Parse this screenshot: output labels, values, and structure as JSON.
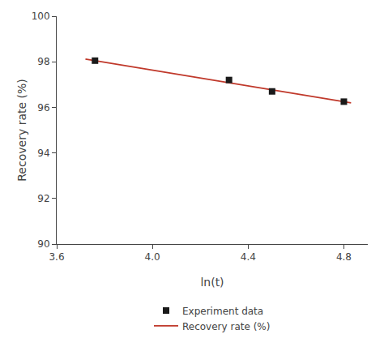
{
  "chart_data": {
    "type": "scatter",
    "series": [
      {
        "name": "Experiment data",
        "type": "scatter",
        "marker": "square",
        "color": "#1a1a1a",
        "x": [
          3.76,
          4.32,
          4.5,
          4.8
        ],
        "values": [
          98.05,
          97.2,
          96.7,
          96.25
        ]
      },
      {
        "name": "Recovery rate (%)",
        "type": "line",
        "line_style": "solid",
        "color": "#c0392b",
        "x": [
          3.72,
          4.83
        ],
        "values": [
          98.12,
          96.2
        ]
      }
    ],
    "xlabel": "ln(t)",
    "ylabel": "Recovery rate (%)",
    "xlim": [
      3.6,
      4.9
    ],
    "ylim": [
      90,
      100
    ],
    "xticks": [
      {
        "value": 3.6,
        "label": "3.6"
      },
      {
        "value": 4.0,
        "label": "4.0"
      },
      {
        "value": 4.4,
        "label": "4.4"
      },
      {
        "value": 4.8,
        "label": "4.8"
      }
    ],
    "yticks": [
      90,
      92,
      94,
      96,
      98,
      100
    ],
    "grid": false,
    "legend": "bottom"
  }
}
